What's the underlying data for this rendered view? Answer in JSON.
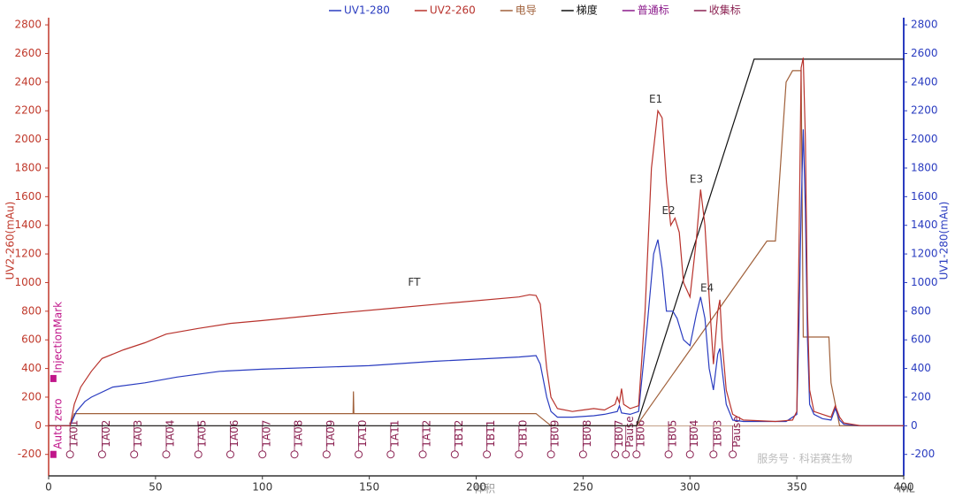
{
  "chart_data": {
    "type": "line",
    "xlabel": "体积",
    "xunit": "mL",
    "ylabel": "UV2-260(mAu)",
    "y2label": "UV1-280(mAu)",
    "xlim": [
      0,
      400
    ],
    "xticks": [
      0,
      50,
      100,
      150,
      200,
      250,
      300,
      350,
      400
    ],
    "ylim": [
      -350,
      2850
    ],
    "yticks": [
      -200,
      0,
      200,
      400,
      600,
      800,
      1000,
      1200,
      1400,
      1600,
      1800,
      2000,
      2200,
      2400,
      2600,
      2800
    ],
    "y2lim": [
      -350,
      2850
    ],
    "y2ticks": [
      -200,
      0,
      200,
      400,
      600,
      800,
      1000,
      1200,
      1400,
      1600,
      1800,
      2000,
      2200,
      2400,
      2600,
      2800
    ],
    "series": [
      {
        "name": "UV1-280",
        "color": "#2a3cc0",
        "axis": "y2",
        "x": [
          0,
          10,
          13,
          17,
          20,
          30,
          45,
          60,
          80,
          100,
          150,
          180,
          220,
          228,
          230,
          233,
          235,
          238,
          245,
          255,
          260,
          266,
          267,
          268,
          272,
          276,
          280,
          283,
          285,
          287,
          289,
          292,
          294,
          297,
          300,
          303,
          305,
          307,
          309,
          311,
          313,
          314,
          315,
          317,
          320,
          325,
          345,
          350,
          351,
          352,
          353,
          354,
          355,
          356,
          358,
          362,
          366,
          368,
          370,
          372,
          380,
          400
        ],
        "values": [
          0,
          0,
          100,
          170,
          200,
          270,
          300,
          340,
          380,
          395,
          420,
          450,
          480,
          490,
          430,
          200,
          100,
          60,
          60,
          70,
          80,
          100,
          140,
          90,
          80,
          100,
          700,
          1200,
          1300,
          1100,
          800,
          800,
          750,
          600,
          560,
          780,
          900,
          750,
          400,
          250,
          500,
          540,
          400,
          150,
          40,
          30,
          30,
          80,
          700,
          1500,
          2070,
          1500,
          600,
          150,
          80,
          50,
          40,
          120,
          40,
          10,
          0,
          0
        ]
      },
      {
        "name": "UV2-260",
        "color": "#b8322c",
        "x": [
          0,
          10,
          12,
          15,
          20,
          25,
          35,
          45,
          55,
          70,
          85,
          100,
          130,
          160,
          190,
          220,
          225,
          228,
          230,
          233,
          235,
          238,
          245,
          250,
          255,
          260,
          265,
          266,
          267,
          268,
          269,
          272,
          276,
          279,
          282,
          285,
          287,
          289,
          291,
          293,
          295,
          297,
          300,
          303,
          305,
          307,
          309,
          311,
          313,
          314,
          315,
          317,
          320,
          325,
          340,
          348,
          350,
          351,
          352,
          353,
          354,
          355,
          356,
          358,
          362,
          366,
          368,
          370,
          372,
          380,
          400
        ],
        "values": [
          0,
          0,
          150,
          270,
          380,
          470,
          530,
          580,
          640,
          680,
          715,
          735,
          780,
          820,
          860,
          900,
          915,
          910,
          850,
          400,
          200,
          120,
          100,
          110,
          120,
          110,
          150,
          200,
          160,
          260,
          150,
          120,
          140,
          800,
          1800,
          2200,
          2150,
          1700,
          1400,
          1450,
          1350,
          1000,
          900,
          1300,
          1650,
          1400,
          900,
          430,
          800,
          880,
          600,
          250,
          80,
          40,
          30,
          40,
          100,
          1200,
          2500,
          2570,
          2000,
          800,
          250,
          100,
          80,
          60,
          140,
          60,
          20,
          0,
          0
        ]
      },
      {
        "name": "电导",
        "color": "#a0603a",
        "x": [
          0,
          10,
          12,
          142.4,
          142.6,
          142.8,
          228,
          230,
          235,
          275,
          336,
          340,
          345,
          348,
          352,
          353,
          365,
          366,
          370,
          400
        ],
        "values": [
          0,
          0,
          85,
          85,
          240,
          85,
          85,
          60,
          0,
          0,
          1290,
          1290,
          2400,
          2480,
          2480,
          620,
          620,
          300,
          0,
          0
        ]
      },
      {
        "name": "梯度",
        "color": "#111111",
        "x": [
          0,
          275,
          330,
          400
        ],
        "values": [
          0,
          0,
          2560,
          2560
        ]
      }
    ],
    "marker_legend": [
      {
        "name": "普通标",
        "color": "#8b1a8b"
      },
      {
        "name": "收集标",
        "color": "#8b2252"
      }
    ],
    "fraction_marks": {
      "x": [
        10,
        25,
        40,
        55,
        70,
        85,
        100,
        115,
        130,
        145,
        160,
        175,
        190,
        205,
        220,
        235,
        250,
        265,
        270,
        275,
        290,
        300,
        311,
        320
      ],
      "labels": [
        "1A01",
        "1A02",
        "1A03",
        "1A04",
        "1A05",
        "1A06",
        "1A07",
        "1A08",
        "1A09",
        "1A10",
        "1A11",
        "1A12",
        "1B12",
        "1B11",
        "1B10",
        "1B09",
        "1B08",
        "1B07",
        "Pause",
        "1B06",
        "1B05",
        "1B04",
        "1B03",
        "Pause"
      ],
      "y": -200
    },
    "event_marks": [
      {
        "label": "Auto zero",
        "x": 2
      },
      {
        "label": "InjectionMark",
        "x": 2
      }
    ],
    "annotations": [
      {
        "text": "FT",
        "x": 171,
        "y": 1000
      },
      {
        "text": "E1",
        "x": 284,
        "y": 2280
      },
      {
        "text": "E2",
        "x": 290,
        "y": 1500
      },
      {
        "text": "E3",
        "x": 303,
        "y": 1720
      },
      {
        "text": "E4",
        "x": 308,
        "y": 960
      }
    ],
    "watermark": "服务号 · 科诺赛生物"
  }
}
